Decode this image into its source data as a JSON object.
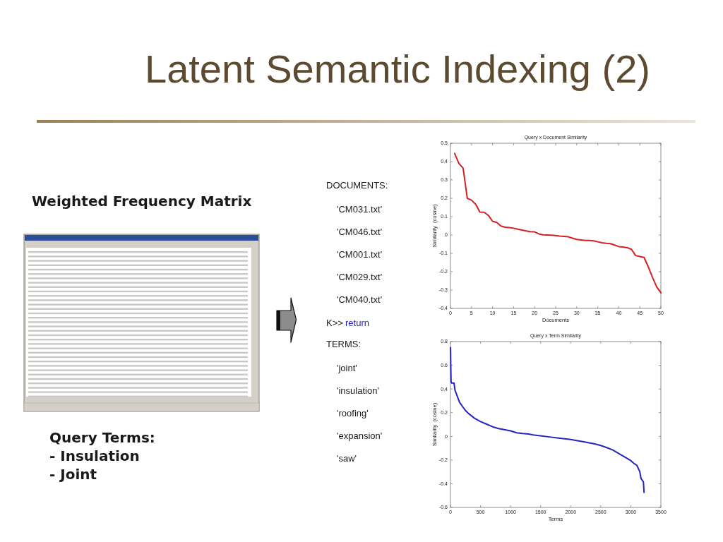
{
  "chart_data": [
    {
      "type": "other",
      "title": "Latent Semantic Indexing (2)",
      "annotations": [
        "Weighted Frequency Matrix",
        "Query Terms:",
        "- Insulation",
        "- Joint",
        "DOCUMENTS:",
        "'CM031.txt'",
        "'CM046.txt'",
        "'CM001.txt'",
        "'CM029.txt'",
        "'CM040.txt'",
        "K>>",
        "return",
        "TERMS:",
        "'joint'",
        "'insulation'",
        "'roofing'",
        "'expansion'",
        "'saw'"
      ]
    },
    {
      "type": "line",
      "title": "Query x Document Similarity",
      "xlabel": "Documents",
      "ylabel": "Similarity  (cosine)",
      "x": [
        1,
        2,
        3,
        4,
        5,
        6,
        7,
        8,
        9,
        10,
        11,
        12,
        13,
        14,
        15,
        16,
        17,
        18,
        19,
        20,
        21,
        22,
        23,
        24,
        25,
        26,
        27,
        28,
        29,
        30,
        31,
        32,
        33,
        34,
        35,
        36,
        37,
        38,
        39,
        40,
        41,
        42,
        43,
        44,
        45,
        46,
        47,
        48,
        49,
        50
      ],
      "series": [
        {
          "color": "#d42020",
          "values": [
            0.445,
            0.39,
            0.365,
            0.2,
            0.19,
            0.167,
            0.125,
            0.124,
            0.107,
            0.075,
            0.068,
            0.049,
            0.042,
            0.04,
            0.037,
            0.032,
            0.027,
            0.022,
            0.018,
            0.017,
            0.006,
            0.001,
            0,
            -0.001,
            -0.003,
            -0.006,
            -0.008,
            -0.01,
            -0.017,
            -0.024,
            -0.027,
            -0.03,
            -0.03,
            -0.032,
            -0.037,
            -0.042,
            -0.045,
            -0.047,
            -0.055,
            -0.063,
            -0.065,
            -0.069,
            -0.078,
            -0.112,
            -0.117,
            -0.122,
            -0.173,
            -0.23,
            -0.282,
            -0.315
          ]
        }
      ],
      "xlim": [
        0,
        50
      ],
      "ylim": [
        -0.4,
        0.5
      ],
      "xticks": [
        0,
        5,
        10,
        15,
        20,
        25,
        30,
        35,
        40,
        45,
        50
      ],
      "yticks": [
        -0.4,
        -0.3,
        -0.2,
        -0.1,
        0,
        0.1,
        0.2,
        0.3,
        0.4,
        0.5
      ]
    },
    {
      "type": "line",
      "title": "Query x Term Similarity",
      "xlabel": "Terms",
      "ylabel": "Similarity  (cosine)",
      "x": [
        1,
        5,
        10,
        20,
        50,
        60,
        75,
        100,
        150,
        200,
        250,
        300,
        400,
        500,
        600,
        700,
        800,
        1000,
        1100,
        1200,
        1300,
        1400,
        1500,
        1600,
        1800,
        2000,
        2200,
        2400,
        2500,
        2600,
        2700,
        2800,
        2900,
        3000,
        3050,
        3100,
        3150,
        3170,
        3200,
        3210,
        3220
      ],
      "series": [
        {
          "color": "#2424c0",
          "values": [
            0.75,
            0.6,
            0.46,
            0.45,
            0.45,
            0.45,
            0.39,
            0.357,
            0.288,
            0.252,
            0.218,
            0.193,
            0.153,
            0.125,
            0.103,
            0.081,
            0.066,
            0.046,
            0.03,
            0.024,
            0.02,
            0.01,
            0.004,
            -0.002,
            -0.014,
            -0.026,
            -0.044,
            -0.064,
            -0.077,
            -0.095,
            -0.115,
            -0.145,
            -0.175,
            -0.205,
            -0.228,
            -0.244,
            -0.298,
            -0.357,
            -0.377,
            -0.387,
            -0.473
          ]
        }
      ],
      "xlim": [
        0,
        3500
      ],
      "ylim": [
        -0.6,
        0.8
      ],
      "xticks": [
        0,
        500,
        1000,
        1500,
        2000,
        2500,
        3000,
        3500
      ],
      "yticks": [
        -0.6,
        -0.4,
        -0.2,
        0,
        0.2,
        0.4,
        0.6,
        0.8
      ]
    }
  ]
}
